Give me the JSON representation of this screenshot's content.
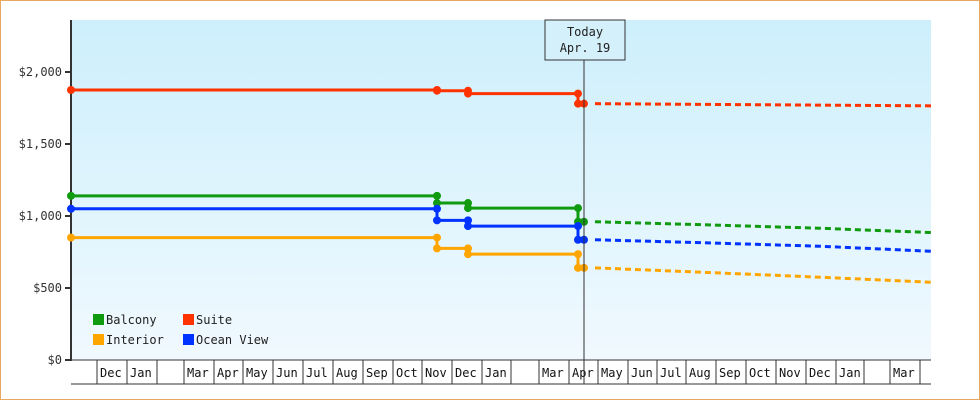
{
  "chart_data": {
    "type": "line",
    "title": "",
    "xlabel": "",
    "ylabel": "",
    "ylim": [
      0,
      2350
    ],
    "y_ticks": [
      {
        "value": 0,
        "label": "$0"
      },
      {
        "value": 500,
        "label": "$500"
      },
      {
        "value": 1000,
        "label": "$1,000"
      },
      {
        "value": 1500,
        "label": "$1,500"
      },
      {
        "value": 2000,
        "label": "$2,000"
      }
    ],
    "x_axis": {
      "month_labels": [
        "",
        "Dec",
        "Jan",
        "",
        "Mar",
        "Apr",
        "May",
        "Jun",
        "Jul",
        "Aug",
        "Sep",
        "Oct",
        "Nov",
        "Dec",
        "Jan",
        "",
        "Mar",
        "Apr",
        "May",
        "Jun",
        "Jul",
        "Aug",
        "Sep",
        "Oct",
        "Nov",
        "Dec",
        "Jan",
        "",
        "Mar"
      ],
      "note": "Feb cells are blank in axis"
    },
    "today_marker": {
      "line1": "Today",
      "line2": "Apr. 19"
    },
    "legend": [
      {
        "name": "Balcony",
        "color": "#109a10"
      },
      {
        "name": "Suite",
        "color": "#ff3300"
      },
      {
        "name": "Interior",
        "color": "#ffa500"
      },
      {
        "name": "Ocean View",
        "color": "#0033ff"
      }
    ],
    "series": [
      {
        "name": "Suite",
        "color": "#ff3300",
        "historical": [
          {
            "date": "start",
            "value": 1875
          },
          {
            "date": "Nov",
            "value": 1875
          },
          {
            "date": "Nov",
            "value": 1870
          },
          {
            "date": "Dec",
            "value": 1870
          },
          {
            "date": "Dec",
            "value": 1850
          },
          {
            "date": "Apr 19",
            "value": 1850
          },
          {
            "date": "Apr 19",
            "value": 1780
          }
        ],
        "forecast": [
          {
            "date": "Apr 19",
            "value": 1780
          },
          {
            "date": "Nov",
            "value": 1770
          },
          {
            "date": "end",
            "value": 1765
          }
        ]
      },
      {
        "name": "Balcony",
        "color": "#109a10",
        "historical": [
          {
            "date": "start",
            "value": 1140
          },
          {
            "date": "Nov",
            "value": 1140
          },
          {
            "date": "Nov",
            "value": 1090
          },
          {
            "date": "Dec",
            "value": 1090
          },
          {
            "date": "Dec",
            "value": 1055
          },
          {
            "date": "Apr 19",
            "value": 1055
          },
          {
            "date": "Apr 19",
            "value": 960
          }
        ],
        "forecast": [
          {
            "date": "Apr 19",
            "value": 960
          },
          {
            "date": "Jul",
            "value": 940
          },
          {
            "date": "Nov",
            "value": 915
          },
          {
            "date": "end",
            "value": 885
          }
        ]
      },
      {
        "name": "Ocean View",
        "color": "#0033ff",
        "historical": [
          {
            "date": "start",
            "value": 1050
          },
          {
            "date": "Nov",
            "value": 1050
          },
          {
            "date": "Nov",
            "value": 970
          },
          {
            "date": "Dec",
            "value": 970
          },
          {
            "date": "Dec",
            "value": 930
          },
          {
            "date": "Apr 19",
            "value": 930
          },
          {
            "date": "Apr 19",
            "value": 835
          }
        ],
        "forecast": [
          {
            "date": "Apr 19",
            "value": 835
          },
          {
            "date": "Jul",
            "value": 815
          },
          {
            "date": "Nov",
            "value": 790
          },
          {
            "date": "end",
            "value": 755
          }
        ]
      },
      {
        "name": "Interior",
        "color": "#ffa500",
        "historical": [
          {
            "date": "start",
            "value": 850
          },
          {
            "date": "Nov",
            "value": 850
          },
          {
            "date": "Nov",
            "value": 775
          },
          {
            "date": "Dec",
            "value": 775
          },
          {
            "date": "Dec",
            "value": 735
          },
          {
            "date": "Apr 19",
            "value": 735
          },
          {
            "date": "Apr 19",
            "value": 640
          }
        ],
        "forecast": [
          {
            "date": "Apr 19",
            "value": 640
          },
          {
            "date": "Jul",
            "value": 610
          },
          {
            "date": "Nov",
            "value": 575
          },
          {
            "date": "end",
            "value": 540
          }
        ]
      }
    ]
  },
  "layout_points": {
    "x_start": 71,
    "x_nov": 437,
    "x_dec": 468,
    "x_today": 584,
    "x_today_pre": 578,
    "x_jul_f": 700,
    "x_nov_f": 820,
    "x_end": 931
  }
}
